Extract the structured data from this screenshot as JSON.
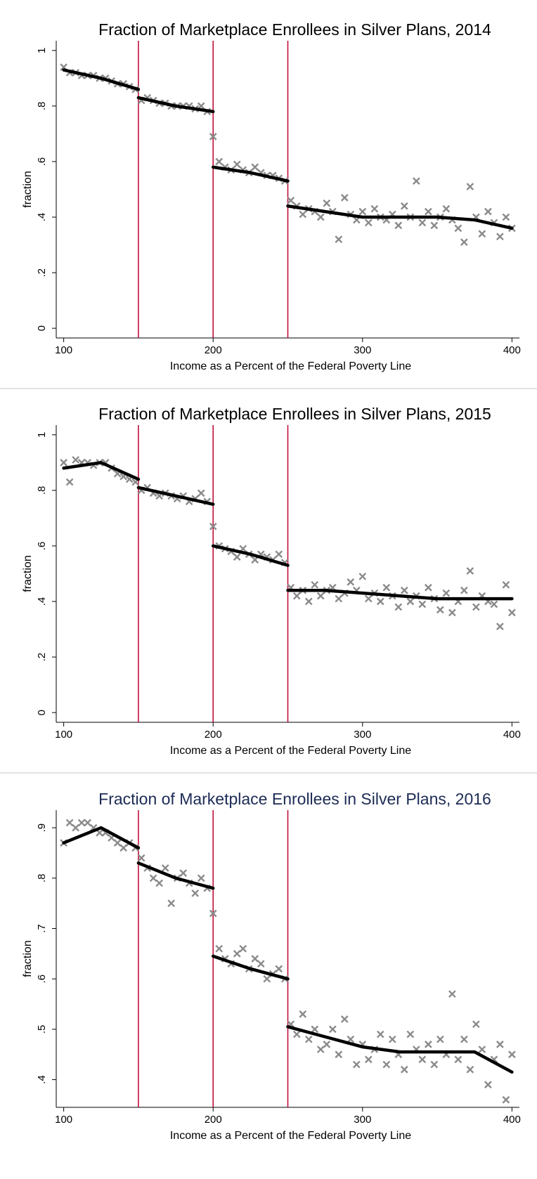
{
  "chart_data": [
    {
      "type": "scatter",
      "title": "Fraction of Marketplace Enrollees in Silver Plans, 2014",
      "title_color": "#000000",
      "xlabel": "Income as a Percent of the Federal Poverty Line",
      "ylabel": "fraction",
      "xlim": [
        95,
        405
      ],
      "xticks": [
        100,
        200,
        300,
        400
      ],
      "ylim": [
        -0.035,
        1.035
      ],
      "yticks": [
        0,
        {
          "value": 0.2,
          "label": ".2"
        },
        {
          "value": 0.4,
          "label": ".4"
        },
        {
          "value": 0.6,
          "label": ".6"
        },
        {
          "value": 0.8,
          "label": ".8"
        },
        1
      ],
      "vlines": [
        150,
        200,
        250
      ],
      "vline_color": "#c0103a",
      "series": [
        {
          "kind": "scatter",
          "marker": "x",
          "color": "#8a8a8a",
          "x": [
            100,
            104,
            108,
            112,
            116,
            120,
            124,
            128,
            132,
            136,
            140,
            144,
            148,
            152,
            156,
            160,
            164,
            168,
            172,
            176,
            180,
            184,
            188,
            192,
            196,
            200,
            204,
            208,
            212,
            216,
            220,
            224,
            228,
            232,
            236,
            240,
            244,
            248,
            252,
            256,
            260,
            264,
            268,
            272,
            276,
            280,
            284,
            288,
            292,
            296,
            300,
            304,
            308,
            312,
            316,
            320,
            324,
            328,
            332,
            336,
            340,
            344,
            348,
            352,
            356,
            360,
            364,
            368,
            372,
            376,
            380,
            384,
            388,
            392,
            396,
            400
          ],
          "values": [
            0.94,
            0.92,
            0.92,
            0.91,
            0.91,
            0.91,
            0.9,
            0.9,
            0.89,
            0.88,
            0.88,
            0.87,
            0.86,
            0.82,
            0.83,
            0.82,
            0.81,
            0.81,
            0.8,
            0.8,
            0.8,
            0.8,
            0.79,
            0.8,
            0.78,
            0.69,
            0.6,
            0.58,
            0.57,
            0.59,
            0.57,
            0.56,
            0.58,
            0.56,
            0.55,
            0.55,
            0.54,
            0.53,
            0.46,
            0.44,
            0.41,
            0.43,
            0.42,
            0.4,
            0.45,
            0.42,
            0.32,
            0.47,
            0.41,
            0.39,
            0.42,
            0.38,
            0.43,
            0.4,
            0.39,
            0.41,
            0.37,
            0.44,
            0.4,
            0.53,
            0.38,
            0.42,
            0.37,
            0.4,
            0.43,
            0.39,
            0.36,
            0.31,
            0.51,
            0.4,
            0.34,
            0.42,
            0.38,
            0.33,
            0.4,
            0.36
          ]
        },
        {
          "kind": "line",
          "color": "#000000",
          "x": [
            100,
            125,
            150
          ],
          "values": [
            0.93,
            0.9,
            0.86
          ]
        },
        {
          "kind": "line",
          "color": "#000000",
          "x": [
            150,
            175,
            200
          ],
          "values": [
            0.83,
            0.8,
            0.78
          ]
        },
        {
          "kind": "line",
          "color": "#000000",
          "x": [
            200,
            225,
            250
          ],
          "values": [
            0.58,
            0.56,
            0.53
          ]
        },
        {
          "kind": "line",
          "color": "#000000",
          "x": [
            250,
            275,
            300,
            325,
            350,
            375,
            400
          ],
          "values": [
            0.44,
            0.42,
            0.4,
            0.4,
            0.4,
            0.39,
            0.36
          ]
        }
      ]
    },
    {
      "type": "scatter",
      "title": "Fraction of Marketplace Enrollees in Silver Plans, 2015",
      "title_color": "#000000",
      "xlabel": "Income as a Percent of the Federal Poverty Line",
      "ylabel": "fraction",
      "xlim": [
        95,
        405
      ],
      "xticks": [
        100,
        200,
        300,
        400
      ],
      "ylim": [
        -0.035,
        1.035
      ],
      "yticks": [
        0,
        {
          "value": 0.2,
          "label": ".2"
        },
        {
          "value": 0.4,
          "label": ".4"
        },
        {
          "value": 0.6,
          "label": ".6"
        },
        {
          "value": 0.8,
          "label": ".8"
        },
        1
      ],
      "vlines": [
        150,
        200,
        250
      ],
      "vline_color": "#c0103a",
      "series": [
        {
          "kind": "scatter",
          "marker": "x",
          "color": "#8a8a8a",
          "x": [
            100,
            104,
            108,
            112,
            116,
            120,
            124,
            128,
            132,
            136,
            140,
            144,
            148,
            152,
            156,
            160,
            164,
            168,
            172,
            176,
            180,
            184,
            188,
            192,
            196,
            200,
            204,
            208,
            212,
            216,
            220,
            224,
            228,
            232,
            236,
            240,
            244,
            248,
            252,
            256,
            260,
            264,
            268,
            272,
            276,
            280,
            284,
            288,
            292,
            296,
            300,
            304,
            308,
            312,
            316,
            320,
            324,
            328,
            332,
            336,
            340,
            344,
            348,
            352,
            356,
            360,
            364,
            368,
            372,
            376,
            380,
            384,
            388,
            392,
            396,
            400
          ],
          "values": [
            0.9,
            0.83,
            0.91,
            0.9,
            0.9,
            0.89,
            0.9,
            0.9,
            0.88,
            0.86,
            0.85,
            0.84,
            0.83,
            0.8,
            0.81,
            0.79,
            0.78,
            0.79,
            0.78,
            0.77,
            0.78,
            0.76,
            0.77,
            0.79,
            0.76,
            0.67,
            0.6,
            0.59,
            0.58,
            0.56,
            0.59,
            0.57,
            0.55,
            0.57,
            0.56,
            0.55,
            0.57,
            0.54,
            0.45,
            0.42,
            0.44,
            0.4,
            0.46,
            0.42,
            0.44,
            0.45,
            0.41,
            0.43,
            0.47,
            0.44,
            0.49,
            0.41,
            0.43,
            0.4,
            0.45,
            0.42,
            0.38,
            0.44,
            0.4,
            0.42,
            0.39,
            0.45,
            0.41,
            0.37,
            0.43,
            0.36,
            0.4,
            0.44,
            0.51,
            0.38,
            0.42,
            0.4,
            0.39,
            0.31,
            0.46,
            0.36
          ]
        },
        {
          "kind": "line",
          "color": "#000000",
          "x": [
            100,
            125,
            150
          ],
          "values": [
            0.88,
            0.9,
            0.84
          ]
        },
        {
          "kind": "line",
          "color": "#000000",
          "x": [
            150,
            175,
            200
          ],
          "values": [
            0.81,
            0.78,
            0.75
          ]
        },
        {
          "kind": "line",
          "color": "#000000",
          "x": [
            200,
            225,
            250
          ],
          "values": [
            0.6,
            0.57,
            0.53
          ]
        },
        {
          "kind": "line",
          "color": "#000000",
          "x": [
            250,
            275,
            300,
            325,
            350,
            375,
            400
          ],
          "values": [
            0.44,
            0.44,
            0.43,
            0.42,
            0.41,
            0.41,
            0.41
          ]
        }
      ]
    },
    {
      "type": "scatter",
      "title": "Fraction of Marketplace Enrollees in Silver Plans, 2016",
      "title_color": "#1c2b55",
      "xlabel": "Income as a Percent of the Federal Poverty Line",
      "ylabel": "fraction",
      "xlim": [
        95,
        405
      ],
      "xticks": [
        100,
        200,
        300,
        400
      ],
      "ylim": [
        0.345,
        0.935
      ],
      "yticks": [
        {
          "value": 0.4,
          "label": ".4"
        },
        {
          "value": 0.5,
          "label": ".5"
        },
        {
          "value": 0.6,
          "label": ".6"
        },
        {
          "value": 0.7,
          "label": ".7"
        },
        {
          "value": 0.8,
          "label": ".8"
        },
        {
          "value": 0.9,
          "label": ".9"
        }
      ],
      "vlines": [
        150,
        200,
        250
      ],
      "vline_color": "#c0103a",
      "series": [
        {
          "kind": "scatter",
          "marker": "x",
          "color": "#8a8a8a",
          "x": [
            100,
            104,
            108,
            112,
            116,
            120,
            124,
            128,
            132,
            136,
            140,
            144,
            148,
            152,
            156,
            160,
            164,
            168,
            172,
            176,
            180,
            184,
            188,
            192,
            196,
            200,
            204,
            208,
            212,
            216,
            220,
            224,
            228,
            232,
            236,
            240,
            244,
            248,
            252,
            256,
            260,
            264,
            268,
            272,
            276,
            280,
            284,
            288,
            292,
            296,
            300,
            304,
            308,
            312,
            316,
            320,
            324,
            328,
            332,
            336,
            340,
            344,
            348,
            352,
            356,
            360,
            364,
            368,
            372,
            376,
            380,
            384,
            388,
            392,
            396,
            400
          ],
          "values": [
            0.87,
            0.91,
            0.9,
            0.91,
            0.91,
            0.9,
            0.89,
            0.89,
            0.88,
            0.87,
            0.86,
            0.87,
            0.86,
            0.84,
            0.82,
            0.8,
            0.79,
            0.82,
            0.75,
            0.8,
            0.81,
            0.79,
            0.77,
            0.8,
            0.78,
            0.73,
            0.66,
            0.64,
            0.63,
            0.65,
            0.66,
            0.62,
            0.64,
            0.63,
            0.6,
            0.61,
            0.62,
            0.6,
            0.51,
            0.49,
            0.53,
            0.48,
            0.5,
            0.46,
            0.47,
            0.5,
            0.45,
            0.52,
            0.48,
            0.43,
            0.47,
            0.44,
            0.46,
            0.49,
            0.43,
            0.48,
            0.45,
            0.42,
            0.49,
            0.46,
            0.44,
            0.47,
            0.43,
            0.48,
            0.45,
            0.57,
            0.44,
            0.48,
            0.42,
            0.51,
            0.46,
            0.39,
            0.44,
            0.47,
            0.36,
            0.45
          ]
        },
        {
          "kind": "line",
          "color": "#000000",
          "x": [
            100,
            125,
            150
          ],
          "values": [
            0.87,
            0.9,
            0.86
          ]
        },
        {
          "kind": "line",
          "color": "#000000",
          "x": [
            150,
            175,
            200
          ],
          "values": [
            0.83,
            0.8,
            0.78
          ]
        },
        {
          "kind": "line",
          "color": "#000000",
          "x": [
            200,
            225,
            250
          ],
          "values": [
            0.645,
            0.62,
            0.6
          ]
        },
        {
          "kind": "line",
          "color": "#000000",
          "x": [
            250,
            275,
            300,
            325,
            350,
            375,
            400
          ],
          "values": [
            0.505,
            0.485,
            0.465,
            0.455,
            0.455,
            0.455,
            0.415
          ]
        }
      ]
    }
  ]
}
